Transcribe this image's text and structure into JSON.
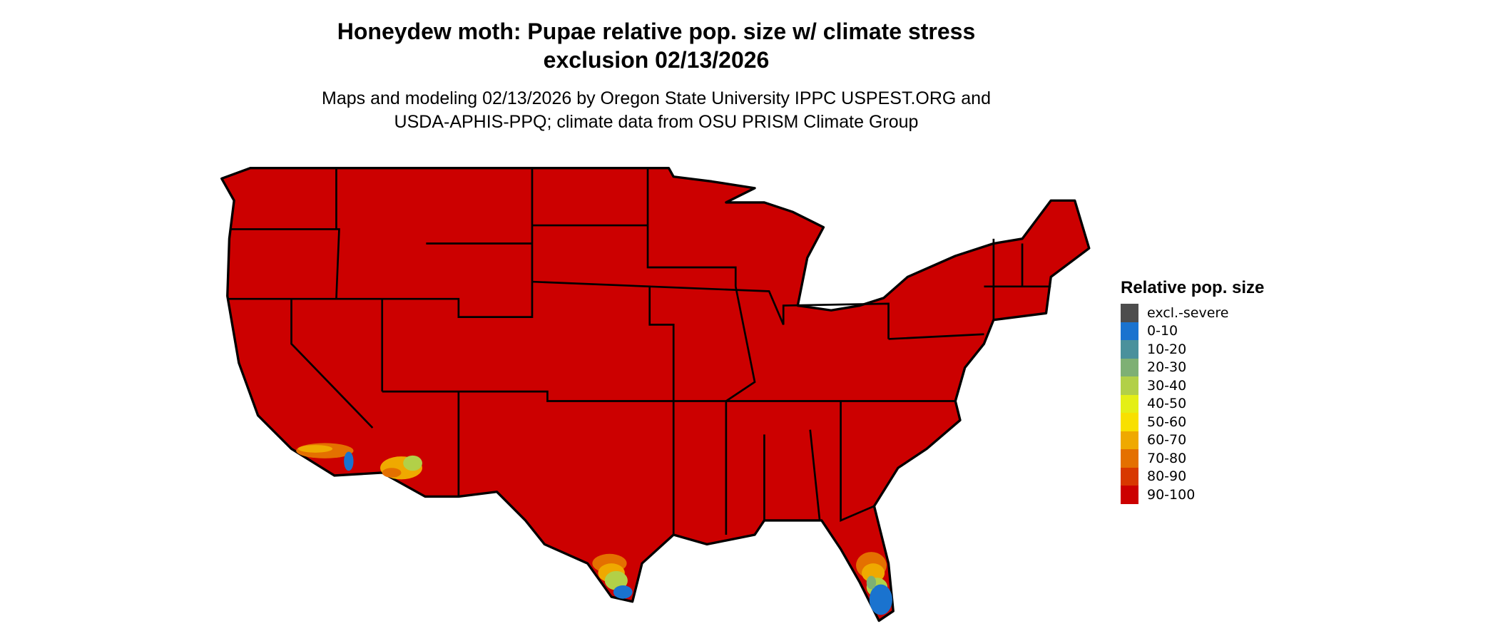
{
  "title": "Honeydew moth: Pupae relative pop. size w/ climate stress exclusion 02/13/2026",
  "subtitle_line1": "Maps and modeling 02/13/2026 by Oregon State University IPPC USPEST.ORG and",
  "subtitle_line2": "USDA-APHIS-PPQ; climate data from OSU PRISM Climate Group",
  "legend": {
    "title": "Relative pop. size",
    "items": [
      {
        "label": "excl.-severe",
        "color": "#4d4d4d"
      },
      {
        "label": "0-10",
        "color": "#1a73cf"
      },
      {
        "label": "10-20",
        "color": "#4a919c"
      },
      {
        "label": "20-30",
        "color": "#7eb074"
      },
      {
        "label": "30-40",
        "color": "#b2d048"
      },
      {
        "label": "40-50",
        "color": "#e4ef16"
      },
      {
        "label": "50-60",
        "color": "#f8e000"
      },
      {
        "label": "60-70",
        "color": "#efa900"
      },
      {
        "label": "70-80",
        "color": "#e47000"
      },
      {
        "label": "80-90",
        "color": "#d83800"
      },
      {
        "label": "90-100",
        "color": "#cc0000"
      }
    ]
  },
  "map": {
    "region": "Contiguous United States",
    "dominant_class": "90-100",
    "low_value_areas": [
      "southern Florida",
      "southern Texas",
      "southern California",
      "southwestern Arizona"
    ]
  }
}
